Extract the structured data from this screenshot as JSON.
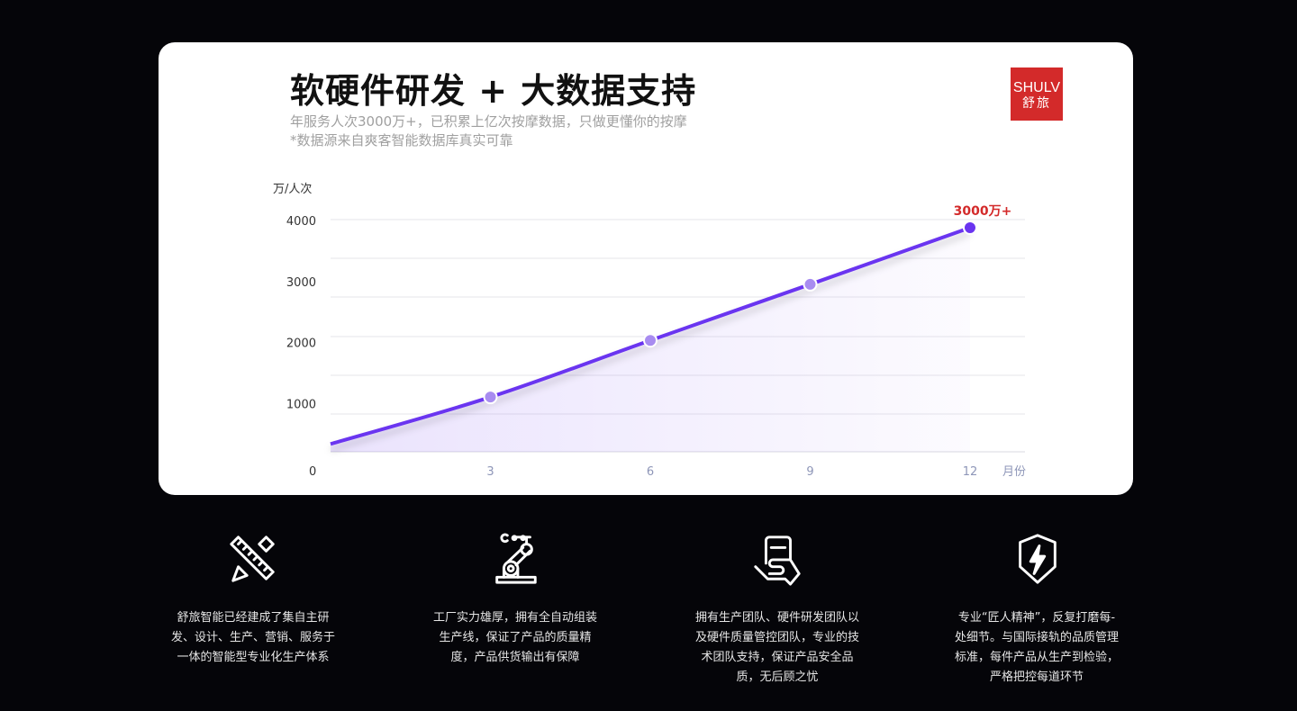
{
  "header": {
    "title": "软硬件研发 + 大数据支持",
    "subtitle_1": "年服务人次3000万+，已积累上亿次按摩数据，只做更懂你的按摩",
    "subtitle_2": "*数据源来自爽客智能数据库真实可靠",
    "logo": {
      "en": "SHULV",
      "cn": "舒旅",
      "color": "#d32a2a"
    }
  },
  "chart_data": {
    "type": "line",
    "title": "",
    "ylabel": "万/人次",
    "xlabel": "月份",
    "x": [
      0,
      3,
      6,
      9,
      12
    ],
    "values": [
      350,
      1120,
      2050,
      2970,
      3900
    ],
    "xticks": [
      "3",
      "6",
      "9",
      "12"
    ],
    "yticks": [
      "0",
      "1000",
      "2000",
      "3000",
      "4000"
    ],
    "ylim": [
      0,
      4000
    ],
    "xlim": [
      0,
      12
    ],
    "grid": true,
    "annotation": "3000万+",
    "line_color": "#6a34f0",
    "annotation_color": "#d32a2a"
  },
  "features": [
    {
      "icon": "ruler-pencil-icon",
      "text": [
        "舒旅智能已经建成了集自主研",
        "发、设计、生产、营销、服务于",
        "一体的智能型专业化生产体系"
      ]
    },
    {
      "icon": "robot-arm-icon",
      "text": [
        "工厂实力雄厚，拥有全自动组装",
        "生产线，保证了产品的质量精",
        "度，产品供货输出有保障"
      ]
    },
    {
      "icon": "hand-document-icon",
      "text": [
        "拥有生产团队、硬件研发团队以",
        "及硬件质量管控团队，专业的技",
        "术团队支持，保证产品安全品",
        "质，无后顾之忧"
      ]
    },
    {
      "icon": "shield-lightning-icon",
      "text": [
        "专业“匠人精神”，反复打磨每-",
        "处细节。与国际接轨的品质管理",
        "标准，每件产品从生产到检验，",
        "严格把控每道环节"
      ]
    }
  ]
}
